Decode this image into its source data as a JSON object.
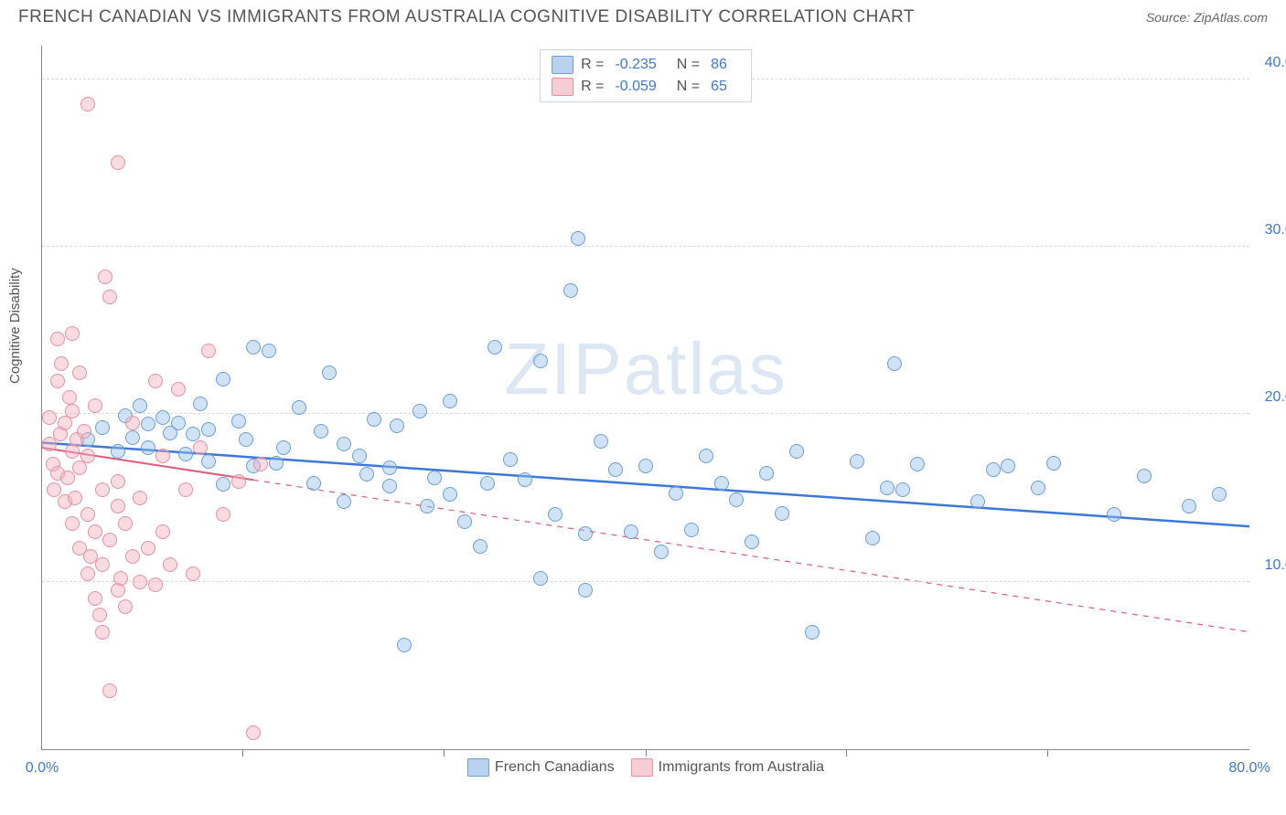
{
  "header": {
    "title": "FRENCH CANADIAN VS IMMIGRANTS FROM AUSTRALIA COGNITIVE DISABILITY CORRELATION CHART",
    "source": "Source: ZipAtlas.com"
  },
  "chart": {
    "type": "scatter",
    "ylabel": "Cognitive Disability",
    "watermark": "ZIPatlas",
    "xlim": [
      0,
      80
    ],
    "ylim": [
      0,
      42
    ],
    "yticks": [
      {
        "v": 10,
        "label": "10.0%"
      },
      {
        "v": 20,
        "label": "20.0%"
      },
      {
        "v": 30,
        "label": "30.0%"
      },
      {
        "v": 40,
        "label": "40.0%"
      }
    ],
    "xticks": [
      {
        "v": 0,
        "label": "0.0%"
      },
      {
        "v": 13.3,
        "label": ""
      },
      {
        "v": 26.6,
        "label": ""
      },
      {
        "v": 40,
        "label": ""
      },
      {
        "v": 53.3,
        "label": ""
      },
      {
        "v": 66.6,
        "label": ""
      },
      {
        "v": 80,
        "label": "80.0%"
      }
    ],
    "series": [
      {
        "id": "s1",
        "name": "French Canadians",
        "color_fill": "rgba(150,190,235,0.45)",
        "color_stroke": "#6a9fd4",
        "swatch_fill": "#b9d2ef",
        "swatch_border": "#6a9fd4",
        "R_label": "R =",
        "R": "-0.235",
        "N_label": "N =",
        "N": "86",
        "trend": {
          "x1": 0,
          "y1": 18.3,
          "x2": 80,
          "y2": 13.3,
          "solid_until_x": 80,
          "stroke": "#3c78d8",
          "width": 2.5
        },
        "points": [
          [
            3,
            18.5
          ],
          [
            4,
            19.2
          ],
          [
            5,
            17.8
          ],
          [
            5.5,
            19.9
          ],
          [
            6,
            18.6
          ],
          [
            6.5,
            20.5
          ],
          [
            7,
            18.0
          ],
          [
            7,
            19.4
          ],
          [
            8,
            19.8
          ],
          [
            8.5,
            18.9
          ],
          [
            9,
            19.5
          ],
          [
            9.5,
            17.6
          ],
          [
            10,
            18.8
          ],
          [
            10.5,
            20.6
          ],
          [
            11,
            19.1
          ],
          [
            11,
            17.2
          ],
          [
            12,
            22.1
          ],
          [
            12,
            15.8
          ],
          [
            13,
            19.6
          ],
          [
            13.5,
            18.5
          ],
          [
            14,
            16.9
          ],
          [
            14,
            24.0
          ],
          [
            15,
            23.8
          ],
          [
            15.5,
            17.1
          ],
          [
            16,
            18.0
          ],
          [
            17,
            20.4
          ],
          [
            18,
            15.9
          ],
          [
            18.5,
            19.0
          ],
          [
            19,
            22.5
          ],
          [
            20,
            14.8
          ],
          [
            20,
            18.2
          ],
          [
            21,
            17.5
          ],
          [
            21.5,
            16.4
          ],
          [
            22,
            19.7
          ],
          [
            23,
            15.7
          ],
          [
            23,
            16.8
          ],
          [
            23.5,
            19.3
          ],
          [
            24,
            6.2
          ],
          [
            25,
            20.2
          ],
          [
            25.5,
            14.5
          ],
          [
            26,
            16.2
          ],
          [
            27,
            15.2
          ],
          [
            27,
            20.8
          ],
          [
            28,
            13.6
          ],
          [
            29,
            12.1
          ],
          [
            29.5,
            15.9
          ],
          [
            30,
            24.0
          ],
          [
            31,
            17.3
          ],
          [
            32,
            16.1
          ],
          [
            33,
            10.2
          ],
          [
            33,
            23.2
          ],
          [
            34,
            14.0
          ],
          [
            35,
            27.4
          ],
          [
            35.5,
            30.5
          ],
          [
            36,
            12.9
          ],
          [
            36,
            9.5
          ],
          [
            37,
            18.4
          ],
          [
            38,
            16.7
          ],
          [
            39,
            13.0
          ],
          [
            40,
            16.9
          ],
          [
            41,
            11.8
          ],
          [
            42,
            15.3
          ],
          [
            43,
            13.1
          ],
          [
            44,
            17.5
          ],
          [
            45,
            15.9
          ],
          [
            46,
            14.9
          ],
          [
            47,
            12.4
          ],
          [
            48,
            16.5
          ],
          [
            49,
            14.1
          ],
          [
            50,
            17.8
          ],
          [
            51,
            7.0
          ],
          [
            54,
            17.2
          ],
          [
            55,
            12.6
          ],
          [
            56,
            15.6
          ],
          [
            56.5,
            23.0
          ],
          [
            57,
            15.5
          ],
          [
            58,
            17.0
          ],
          [
            62,
            14.8
          ],
          [
            63,
            16.7
          ],
          [
            64,
            16.9
          ],
          [
            66,
            15.6
          ],
          [
            67,
            17.1
          ],
          [
            71,
            14.0
          ],
          [
            73,
            16.3
          ],
          [
            76,
            14.5
          ],
          [
            78,
            15.2
          ]
        ]
      },
      {
        "id": "s2",
        "name": "Immigrants from Australia",
        "color_fill": "rgba(245,175,190,0.45)",
        "color_stroke": "#e8909f",
        "swatch_fill": "#f6cdd4",
        "swatch_border": "#e8909f",
        "R_label": "R =",
        "R": "-0.059",
        "N_label": "N =",
        "N": "65",
        "trend": {
          "x1": 0,
          "y1": 18.0,
          "x2": 80,
          "y2": 7.0,
          "solid_until_x": 14,
          "stroke": "#e05a7a",
          "width": 2
        },
        "points": [
          [
            0.5,
            18.2
          ],
          [
            0.5,
            19.8
          ],
          [
            0.7,
            17.0
          ],
          [
            0.8,
            15.5
          ],
          [
            1,
            16.5
          ],
          [
            1,
            22.0
          ],
          [
            1,
            24.5
          ],
          [
            1.2,
            18.8
          ],
          [
            1.3,
            23.0
          ],
          [
            1.5,
            14.8
          ],
          [
            1.5,
            19.5
          ],
          [
            1.7,
            16.2
          ],
          [
            1.8,
            21.0
          ],
          [
            2,
            17.8
          ],
          [
            2,
            20.2
          ],
          [
            2,
            13.5
          ],
          [
            2,
            24.8
          ],
          [
            2.2,
            15.0
          ],
          [
            2.3,
            18.5
          ],
          [
            2.5,
            22.5
          ],
          [
            2.5,
            12.0
          ],
          [
            2.5,
            16.8
          ],
          [
            2.8,
            19.0
          ],
          [
            3,
            14.0
          ],
          [
            3,
            17.5
          ],
          [
            3,
            10.5
          ],
          [
            3,
            38.5
          ],
          [
            3.2,
            11.5
          ],
          [
            3.5,
            13.0
          ],
          [
            3.5,
            20.5
          ],
          [
            3.5,
            9.0
          ],
          [
            3.8,
            8.0
          ],
          [
            4,
            15.5
          ],
          [
            4,
            11.0
          ],
          [
            4,
            7.0
          ],
          [
            4.2,
            28.2
          ],
          [
            4.5,
            12.5
          ],
          [
            4.5,
            27.0
          ],
          [
            4.5,
            3.5
          ],
          [
            5,
            9.5
          ],
          [
            5,
            14.5
          ],
          [
            5,
            16.0
          ],
          [
            5,
            35.0
          ],
          [
            5.2,
            10.2
          ],
          [
            5.5,
            8.5
          ],
          [
            5.5,
            13.5
          ],
          [
            6,
            11.5
          ],
          [
            6,
            19.5
          ],
          [
            6.5,
            10.0
          ],
          [
            6.5,
            15.0
          ],
          [
            7,
            12.0
          ],
          [
            7.5,
            22.0
          ],
          [
            7.5,
            9.8
          ],
          [
            8,
            13.0
          ],
          [
            8,
            17.5
          ],
          [
            8.5,
            11.0
          ],
          [
            9,
            21.5
          ],
          [
            9.5,
            15.5
          ],
          [
            10,
            10.5
          ],
          [
            10.5,
            18.0
          ],
          [
            11,
            23.8
          ],
          [
            12,
            14.0
          ],
          [
            13,
            16.0
          ],
          [
            14,
            1.0
          ],
          [
            14.5,
            17.0
          ]
        ]
      }
    ]
  }
}
